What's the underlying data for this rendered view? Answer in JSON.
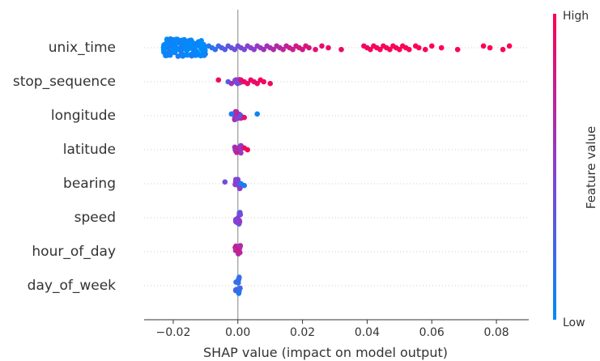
{
  "chart_data": {
    "type": "scatter",
    "subtype": "shap-beeswarm",
    "xlabel": "SHAP value (impact on model output)",
    "xlim": [
      -0.029,
      0.09
    ],
    "xticks": [
      -0.02,
      0.0,
      0.02,
      0.04,
      0.06,
      0.08
    ],
    "xtick_labels": [
      "−0.02",
      "0.00",
      "0.02",
      "0.04",
      "0.06",
      "0.08"
    ],
    "zero_line": true,
    "row_gridlines": "dotted",
    "colorbar": {
      "title": "Feature value",
      "high_label": "High",
      "low_label": "Low",
      "high_color": "#ff0052",
      "mid_color": "#8a3fd0",
      "low_color": "#008bfb"
    },
    "features": [
      {
        "name": "unix_time",
        "dense_band": {
          "from": -0.023,
          "to": -0.01,
          "color": 0.02,
          "spread": 11
        },
        "points": [
          [
            -0.009,
            0.1
          ],
          [
            -0.008,
            0.15
          ],
          [
            -0.007,
            0.2
          ],
          [
            -0.006,
            0.2
          ],
          [
            -0.005,
            0.3
          ],
          [
            -0.004,
            0.3
          ],
          [
            -0.003,
            0.35
          ],
          [
            -0.002,
            0.35
          ],
          [
            -0.001,
            0.4
          ],
          [
            0.0,
            0.4
          ],
          [
            0.001,
            0.45
          ],
          [
            0.002,
            0.45
          ],
          [
            0.003,
            0.5
          ],
          [
            0.004,
            0.5
          ],
          [
            0.005,
            0.5
          ],
          [
            0.006,
            0.55
          ],
          [
            0.007,
            0.55
          ],
          [
            0.008,
            0.6
          ],
          [
            0.009,
            0.6
          ],
          [
            0.01,
            0.62
          ],
          [
            0.011,
            0.65
          ],
          [
            0.012,
            0.65
          ],
          [
            0.013,
            0.7
          ],
          [
            0.014,
            0.7
          ],
          [
            0.015,
            0.72
          ],
          [
            0.016,
            0.75
          ],
          [
            0.017,
            0.75
          ],
          [
            0.018,
            0.78
          ],
          [
            0.019,
            0.8
          ],
          [
            0.02,
            0.8
          ],
          [
            0.021,
            0.82
          ],
          [
            0.022,
            0.85
          ],
          [
            0.024,
            0.87
          ],
          [
            0.026,
            0.9
          ],
          [
            0.028,
            0.9
          ],
          [
            0.032,
            0.92
          ],
          [
            0.039,
            0.95
          ],
          [
            0.04,
            0.95
          ],
          [
            0.041,
            0.95
          ],
          [
            0.042,
            0.96
          ],
          [
            0.043,
            0.96
          ],
          [
            0.044,
            0.97
          ],
          [
            0.045,
            0.97
          ],
          [
            0.046,
            0.97
          ],
          [
            0.047,
            0.98
          ],
          [
            0.048,
            0.98
          ],
          [
            0.049,
            0.98
          ],
          [
            0.05,
            0.98
          ],
          [
            0.051,
            0.98
          ],
          [
            0.052,
            0.99
          ],
          [
            0.053,
            0.99
          ],
          [
            0.055,
            0.99
          ],
          [
            0.056,
            0.99
          ],
          [
            0.058,
            0.99
          ],
          [
            0.06,
            1.0
          ],
          [
            0.063,
            1.0
          ],
          [
            0.068,
            1.0
          ],
          [
            0.076,
            1.0
          ],
          [
            0.078,
            1.0
          ],
          [
            0.082,
            1.0
          ],
          [
            0.084,
            1.0
          ]
        ]
      },
      {
        "name": "stop_sequence",
        "dense_band": {
          "from": -0.001,
          "to": 0.001,
          "color": 0.5,
          "spread": 3
        },
        "points": [
          [
            -0.006,
            0.95
          ],
          [
            -0.003,
            0.3
          ],
          [
            -0.002,
            0.6
          ],
          [
            0.001,
            0.9
          ],
          [
            0.002,
            0.95
          ],
          [
            0.003,
            0.9
          ],
          [
            0.004,
            0.95
          ],
          [
            0.005,
            0.9
          ],
          [
            0.006,
            0.92
          ],
          [
            0.007,
            0.95
          ],
          [
            0.008,
            0.95
          ],
          [
            0.01,
            0.95
          ]
        ]
      },
      {
        "name": "longitude",
        "dense_band": {
          "from": -0.001,
          "to": 0.001,
          "color": 0.6,
          "spread": 5
        },
        "points": [
          [
            -0.002,
            0.1
          ],
          [
            0.001,
            0.3
          ],
          [
            0.002,
            0.9
          ],
          [
            0.006,
            0.05
          ]
        ]
      },
      {
        "name": "latitude",
        "dense_band": {
          "from": -0.001,
          "to": 0.001,
          "color": 0.6,
          "spread": 5
        },
        "points": [
          [
            0.002,
            0.9
          ],
          [
            0.003,
            0.95
          ]
        ]
      },
      {
        "name": "bearing",
        "dense_band": {
          "from": -0.001,
          "to": 0.001,
          "color": 0.55,
          "spread": 6
        },
        "points": [
          [
            -0.004,
            0.4
          ],
          [
            0.001,
            0.05
          ],
          [
            0.002,
            0.1
          ]
        ]
      },
      {
        "name": "speed",
        "dense_band": {
          "from": -0.0008,
          "to": 0.0008,
          "color": 0.45,
          "spread": 8
        },
        "points": []
      },
      {
        "name": "hour_of_day",
        "dense_band": {
          "from": -0.0008,
          "to": 0.0008,
          "color": 0.7,
          "spread": 9
        },
        "points": []
      },
      {
        "name": "day_of_week",
        "dense_band": {
          "from": -0.0008,
          "to": 0.0008,
          "color": 0.15,
          "spread": 11
        },
        "points": []
      }
    ]
  }
}
